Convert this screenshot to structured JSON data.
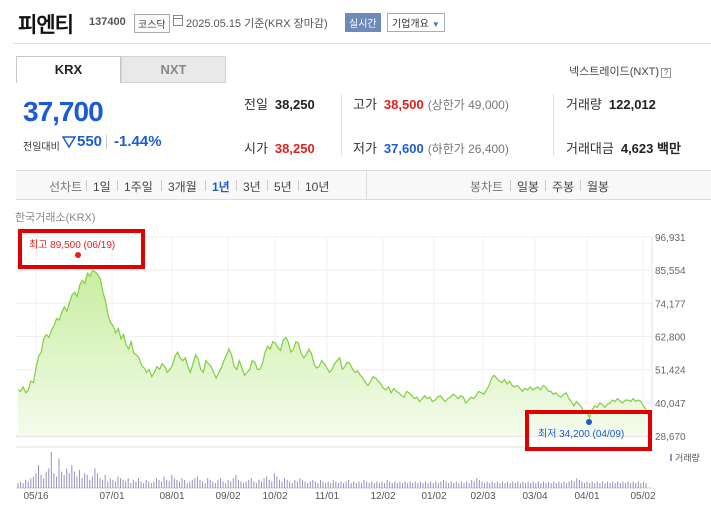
{
  "header": {
    "stock_name": "피엔티",
    "stock_code": "137400",
    "market_badge": "코스닥",
    "date_text": "2025.05.15 기준(KRX 장마감)",
    "realtime_button": "실시간",
    "company_info_button": "기업개요"
  },
  "tabs": [
    {
      "label": "KRX",
      "active": true
    },
    {
      "label": "NXT",
      "active": false
    }
  ],
  "nextrade_link": "넥스트레이드(NXT)",
  "help_glyph": "?",
  "quote": {
    "price": "37,700",
    "change_label": "전일대비",
    "change": "550",
    "change_direction": "down",
    "change_pct": "-1.44%"
  },
  "stats": {
    "prev_close": {
      "label": "전일",
      "value": "38,250"
    },
    "open": {
      "label": "시가",
      "value": "38,250"
    },
    "high": {
      "label": "고가",
      "value": "38,500",
      "limit": "(상한가 49,000)"
    },
    "low": {
      "label": "저가",
      "value": "37,600",
      "limit": "(하한가 26,400)"
    },
    "volume": {
      "label": "거래량",
      "value": "122,012"
    },
    "trade_value": {
      "label": "거래대금",
      "value": "4,623",
      "unit": "백만"
    }
  },
  "period_bar": {
    "line_label": "선차트",
    "periods": [
      "1일",
      "1주일",
      "3개월",
      "1년",
      "3년",
      "5년",
      "10년"
    ],
    "selected_period": "1년",
    "candle_label": "봉차트",
    "candle_periods": [
      "일봉",
      "주봉",
      "월봉"
    ]
  },
  "colors": {
    "up": "#e02020",
    "down": "#1c5bd3",
    "area_fill": "#c8eea0",
    "line": "#7fcf3f",
    "highlight_box": "#e00000"
  },
  "chart_data": {
    "type": "area",
    "exchange_label": "한국거래소(KRX)",
    "y_ticks": [
      "96,931",
      "85,554",
      "74,177",
      "62,800",
      "51,424",
      "40,047",
      "28,670"
    ],
    "ylim": [
      28670,
      96931
    ],
    "x_labels": [
      "05/16",
      "07/01",
      "08/01",
      "09/02",
      "10/02",
      "11/01",
      "12/02",
      "01/02",
      "02/03",
      "03/04",
      "04/01",
      "05/02"
    ],
    "volume_label": "거래량",
    "high_annotation": "최고 89,500 (06/19)",
    "low_annotation": "최저 34,200 (04/09)",
    "grid": true,
    "series": [
      {
        "values": [
          44500,
          44000,
          45500,
          43500,
          44500,
          47500,
          47000,
          52000,
          56000,
          57500,
          62000,
          63500,
          62500,
          65000,
          66500,
          69000,
          68500,
          71000,
          73000,
          71500,
          74500,
          77000,
          78000,
          76500,
          80500,
          82000,
          81000,
          84500,
          83500,
          85500,
          85000,
          84000,
          82500,
          78000,
          75000,
          70000,
          67500,
          66500,
          64000,
          65500,
          62000,
          63500,
          60000,
          58500,
          61000,
          57000,
          56500,
          55500,
          53000,
          52000,
          50500,
          51500,
          49000,
          50500,
          52500,
          51500,
          53500,
          52500,
          50500,
          51500,
          53000,
          56000,
          57500,
          55500,
          54500,
          55500,
          52500,
          50500,
          53500,
          56500,
          55000,
          51500,
          50500,
          54500,
          53500,
          52500,
          50500,
          48500,
          50500,
          52000,
          54500,
          56500,
          58500,
          56500,
          52500,
          51500,
          54500,
          52000,
          49500,
          50500,
          51500,
          54500,
          54000,
          51500,
          51500,
          53500,
          57500,
          59500,
          58500,
          61000,
          60500,
          59000,
          58000,
          61500,
          62500,
          61000,
          57500,
          58500,
          61000,
          60500,
          57000,
          55500,
          56500,
          58500,
          57000,
          53500,
          52000,
          52500,
          54500,
          53500,
          52000,
          50500,
          51500,
          53500,
          54500,
          55500,
          51500,
          52500,
          54000,
          53500,
          51500,
          50500,
          51000,
          49500,
          48500,
          47000,
          46000,
          47500,
          49000,
          48500,
          47500,
          46500,
          45000,
          44500,
          45500,
          43500,
          45000,
          44000,
          43500,
          42500,
          42000,
          44000,
          43500,
          42500,
          41500,
          42000,
          40500,
          41500,
          42500,
          41500,
          42000,
          40500,
          41000,
          42000,
          42500,
          41500,
          40500,
          41500,
          42000,
          43000,
          42500,
          41500,
          42500,
          42000,
          40000,
          41000,
          42000,
          41500,
          42500,
          44000,
          43500,
          43000,
          44500,
          46000,
          48500,
          49500,
          48500,
          47500,
          47000,
          48000,
          46500,
          47500,
          46000,
          45500,
          46000,
          45000,
          44000,
          45000,
          44500,
          45500,
          44500,
          45000,
          45500,
          44500,
          46000,
          45500,
          44000,
          44000,
          43000,
          43500,
          42500,
          42000,
          43000,
          43500,
          41500,
          40500,
          39000,
          40500,
          39500,
          38500,
          36500,
          37000,
          35000,
          37500,
          39000,
          38500,
          40000,
          39500,
          38500,
          39500,
          40000,
          41000,
          40500,
          41500,
          40500,
          40000,
          41000,
          41000,
          40500,
          41500,
          40500,
          41000,
          40500,
          39000,
          37700
        ]
      }
    ],
    "volume_bars": [
      3,
      4,
      3,
      5,
      4,
      6,
      7,
      9,
      14,
      8,
      6,
      10,
      12,
      22,
      9,
      7,
      18,
      10,
      8,
      12,
      9,
      14,
      10,
      7,
      11,
      6,
      9,
      8,
      5,
      7,
      12,
      9,
      6,
      5,
      8,
      4,
      6,
      5,
      4,
      7,
      6,
      5,
      4,
      6,
      3,
      5,
      4,
      6,
      4,
      3,
      5,
      4,
      3,
      4,
      6,
      5,
      4,
      7,
      5,
      4,
      8,
      6,
      5,
      4,
      6,
      5,
      3,
      4,
      5,
      6,
      7,
      5,
      4,
      3,
      6,
      5,
      4,
      3,
      5,
      6,
      4,
      3,
      5,
      4,
      6,
      8,
      5,
      4,
      3,
      4,
      5,
      6,
      4,
      3,
      5,
      4,
      6,
      7,
      5,
      4,
      9,
      7,
      5,
      4,
      6,
      5,
      4,
      3,
      5,
      4,
      6,
      5,
      4,
      3,
      4,
      5,
      4,
      3,
      5,
      4,
      3,
      4,
      3,
      5,
      4,
      3,
      4,
      3,
      4,
      5,
      3,
      4,
      3,
      4,
      3,
      5,
      4,
      3,
      4,
      3,
      4,
      3,
      4,
      3,
      5,
      4,
      3,
      4,
      3,
      4,
      3,
      4,
      3,
      4,
      3,
      4,
      3,
      4,
      3,
      4,
      3,
      4,
      3,
      4,
      3,
      4,
      5,
      4,
      3,
      4,
      3,
      4,
      3,
      4,
      3,
      4,
      3,
      5,
      4,
      6,
      5,
      4,
      3,
      4,
      3,
      4,
      3,
      4,
      3,
      4,
      3,
      4,
      3,
      4,
      3,
      4,
      3,
      4,
      3,
      4,
      3,
      4,
      3,
      4,
      3,
      4,
      3,
      4,
      3,
      4,
      3,
      4,
      3,
      4,
      3,
      4,
      5,
      4,
      6,
      5,
      4,
      3,
      4,
      3,
      4,
      3,
      4,
      3,
      4,
      3,
      4,
      3,
      4,
      3,
      4,
      3,
      4,
      3,
      4,
      3,
      4,
      3,
      4,
      3,
      4,
      3
    ]
  }
}
